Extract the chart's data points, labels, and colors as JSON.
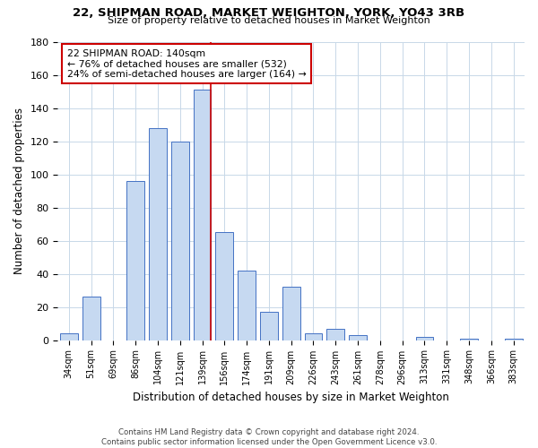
{
  "title": "22, SHIPMAN ROAD, MARKET WEIGHTON, YORK, YO43 3RB",
  "subtitle": "Size of property relative to detached houses in Market Weighton",
  "xlabel": "Distribution of detached houses by size in Market Weighton",
  "ylabel": "Number of detached properties",
  "bar_labels": [
    "34sqm",
    "51sqm",
    "69sqm",
    "86sqm",
    "104sqm",
    "121sqm",
    "139sqm",
    "156sqm",
    "174sqm",
    "191sqm",
    "209sqm",
    "226sqm",
    "243sqm",
    "261sqm",
    "278sqm",
    "296sqm",
    "313sqm",
    "331sqm",
    "348sqm",
    "366sqm",
    "383sqm"
  ],
  "bar_heights": [
    4,
    26,
    0,
    96,
    128,
    120,
    151,
    65,
    42,
    17,
    32,
    4,
    7,
    3,
    0,
    0,
    2,
    0,
    1,
    0,
    1
  ],
  "bar_color": "#c6d9f1",
  "bar_edge_color": "#4472c4",
  "vline_color": "#cc0000",
  "annotation_title": "22 SHIPMAN ROAD: 140sqm",
  "annotation_line1": "← 76% of detached houses are smaller (532)",
  "annotation_line2": "24% of semi-detached houses are larger (164) →",
  "annotation_box_color": "#ffffff",
  "annotation_box_edge": "#cc0000",
  "ylim": [
    0,
    180
  ],
  "yticks": [
    0,
    20,
    40,
    60,
    80,
    100,
    120,
    140,
    160,
    180
  ],
  "footer1": "Contains HM Land Registry data © Crown copyright and database right 2024.",
  "footer2": "Contains public sector information licensed under the Open Government Licence v3.0.",
  "background_color": "#ffffff",
  "grid_color": "#c8d8e8"
}
